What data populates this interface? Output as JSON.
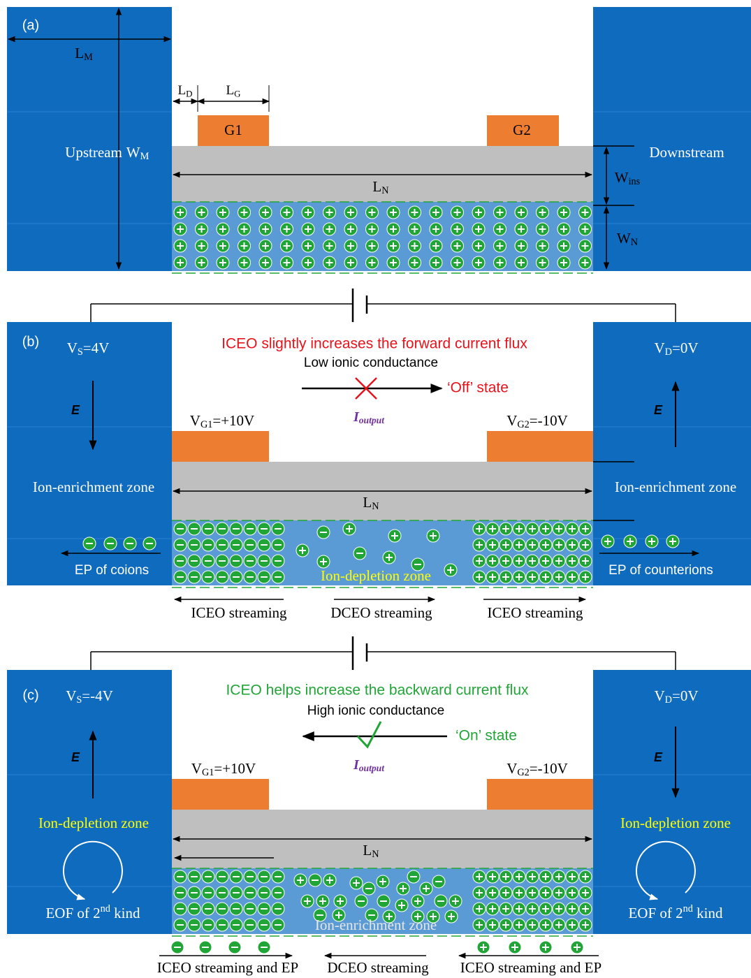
{
  "panel_a": {
    "label": "(a)",
    "upstream": "Upstream",
    "downstream": "Downstream",
    "gate1": "G1",
    "gate2": "G2",
    "lm": {
      "main": "L",
      "sub": "M"
    },
    "wm": {
      "main": "W",
      "sub": "M"
    },
    "ld": {
      "main": "L",
      "sub": "D"
    },
    "lg": {
      "main": "L",
      "sub": "G"
    },
    "ln": {
      "main": "L",
      "sub": "N"
    },
    "wins": {
      "main": "W",
      "sub": "ins"
    },
    "wn": {
      "main": "W",
      "sub": "N"
    }
  },
  "panel_b": {
    "label": "(b)",
    "vs": {
      "main": "V",
      "sub": "S",
      "rest": "=4V"
    },
    "vd": {
      "main": "V",
      "sub": "D",
      "rest": "=0V"
    },
    "headline": "ICEO slightly increases the forward current flux",
    "conductance": "Low ionic conductance",
    "state": "‘Off’ state",
    "output": {
      "main": "I",
      "sub": "output"
    },
    "vg1": {
      "main": "V",
      "sub": "G1",
      "rest": "=+10V"
    },
    "vg2": {
      "main": "V",
      "sub": "G2",
      "rest": "=-10V"
    },
    "e_left": "E",
    "e_right": "E",
    "zone_left": "Ion-enrichment zone",
    "zone_right": "Ion-enrichment zone",
    "ln": {
      "main": "L",
      "sub": "N"
    },
    "ep_left": "EP of coions",
    "ep_right": "EP of counterions",
    "zone_channel": "Ion-depletion zone",
    "stream_left": "ICEO streaming",
    "stream_mid": "DCEO streaming",
    "stream_right": "ICEO streaming"
  },
  "panel_c": {
    "label": "(c)",
    "vs": {
      "main": "V",
      "sub": "S",
      "rest": "=-4V"
    },
    "vd": {
      "main": "V",
      "sub": "D",
      "rest": "=0V"
    },
    "headline": "ICEO helps increase the backward current flux",
    "conductance": "High ionic conductance",
    "state": "‘On’ state",
    "output": {
      "main": "I",
      "sub": "output"
    },
    "vg1": {
      "main": "V",
      "sub": "G1",
      "rest": "=+10V"
    },
    "vg2": {
      "main": "V",
      "sub": "G2",
      "rest": "=-10V"
    },
    "e_left": "E",
    "e_right": "E",
    "zone_left": "Ion-depletion zone",
    "zone_right": "Ion-depletion zone",
    "eof_left": {
      "main": "EOF of 2",
      "sup": "nd",
      "rest": " kind"
    },
    "eof_right": {
      "main": "EOF of 2",
      "sup": "nd",
      "rest": " kind"
    },
    "ln": {
      "main": "L",
      "sub": "N"
    },
    "zone_channel": "Ion-enrichment zone",
    "stream_left": "ICEO streaming and EP",
    "stream_mid": "DCEO streaming",
    "stream_right": "ICEO streaming and EP"
  }
}
